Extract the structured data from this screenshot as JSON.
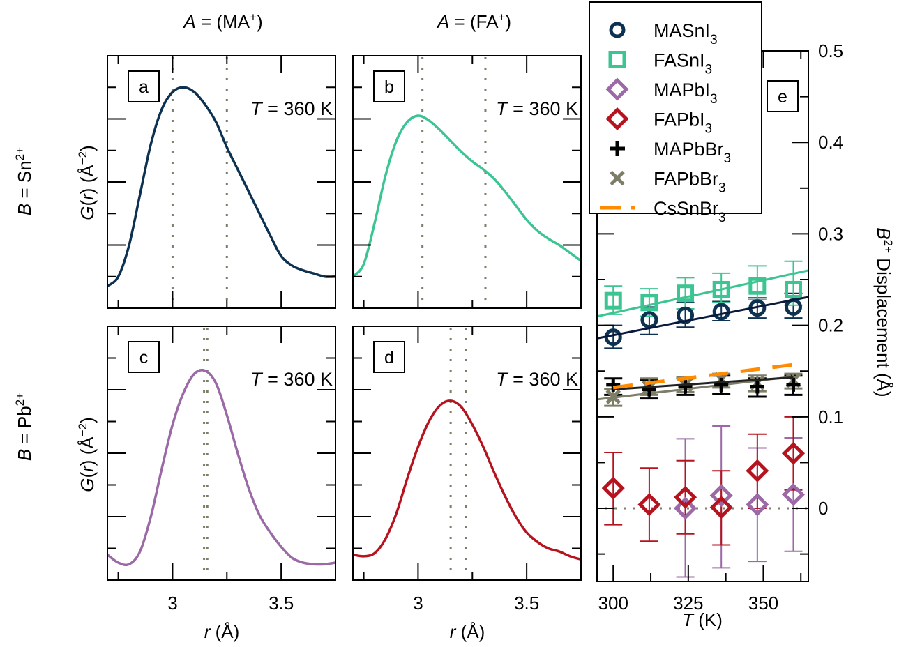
{
  "column_headers": [
    {
      "italic": "A",
      "rest": " = (MA",
      "sup": "+",
      "tail": ")"
    },
    {
      "italic": "A",
      "rest": " = (FA",
      "sup": "+",
      "tail": ")"
    }
  ],
  "row_headers": [
    {
      "italic": "B",
      "rest": " = Sn",
      "sup": "2+"
    },
    {
      "italic": "B",
      "rest": " = Pb",
      "sup": "2+"
    }
  ],
  "colors": {
    "MASnI3": "#0d3150",
    "FASnI3": "#3cc592",
    "MAPbI3": "#9b69a5",
    "FAPbI3": "#b5141f",
    "MAPbBr3": "#000000",
    "FAPbBr3": "#7d7d68",
    "CsSnBr3": "#ff8c00",
    "reference_dots": "#7d7d68"
  },
  "chart_data": [
    {
      "id": "a",
      "type": "line",
      "panel_label": "a",
      "annotation": {
        "italic": "T",
        "rest": " = 360 K"
      },
      "xlabel": {
        "italic": "r",
        "rest": " (Å)"
      },
      "ylabel": {
        "italic_g": "G",
        "paren_open": "(",
        "italic_r": "r",
        "paren_close": ")",
        "unit": " (Å",
        "sup": "−2",
        "tail": ")"
      },
      "xlim": [
        2.7,
        3.75
      ],
      "ylim": [
        0,
        8
      ],
      "xticks_major": [
        3.0,
        3.5
      ],
      "xticks_minor": [
        2.75,
        3.25
      ],
      "xtick_labels": [],
      "y_tick_labels_shown": false,
      "series_color_key": "MASnI3",
      "reference_lines": [
        3.0,
        3.25
      ],
      "x": [
        2.7,
        2.75,
        2.8,
        2.85,
        2.9,
        2.95,
        3.0,
        3.05,
        3.1,
        3.15,
        3.2,
        3.25,
        3.3,
        3.35,
        3.4,
        3.45,
        3.5,
        3.55,
        3.6,
        3.65,
        3.7,
        3.75
      ],
      "y": [
        0.7,
        1.0,
        2.0,
        3.6,
        5.2,
        6.3,
        6.85,
        7.0,
        6.85,
        6.45,
        5.9,
        5.1,
        4.4,
        3.7,
        3.0,
        2.3,
        1.65,
        1.35,
        1.2,
        1.1,
        1.0,
        1.0
      ]
    },
    {
      "id": "b",
      "type": "line",
      "panel_label": "b",
      "annotation": {
        "italic": "T",
        "rest": " = 360 K"
      },
      "xlabel": {
        "italic": "r",
        "rest": " (Å)"
      },
      "xlim": [
        2.7,
        3.75
      ],
      "ylim": [
        0,
        8
      ],
      "xticks_major": [
        3.0,
        3.5
      ],
      "xticks_minor": [
        2.75,
        3.25
      ],
      "xtick_labels": [],
      "series_color_key": "FASnI3",
      "reference_lines": [
        3.02,
        3.31
      ],
      "x": [
        2.7,
        2.75,
        2.8,
        2.85,
        2.9,
        2.95,
        3.0,
        3.05,
        3.1,
        3.15,
        3.2,
        3.25,
        3.3,
        3.35,
        3.4,
        3.45,
        3.5,
        3.55,
        3.6,
        3.65,
        3.7,
        3.75
      ],
      "y": [
        1.0,
        1.4,
        2.7,
        4.2,
        5.3,
        5.9,
        6.1,
        5.95,
        5.65,
        5.3,
        4.95,
        4.65,
        4.4,
        4.1,
        3.7,
        3.25,
        2.8,
        2.45,
        2.2,
        2.0,
        1.75,
        1.5
      ]
    },
    {
      "id": "c",
      "type": "line",
      "panel_label": "c",
      "annotation": {
        "italic": "T",
        "rest": " = 360 K"
      },
      "xlabel": {
        "italic": "r",
        "rest": " (Å)"
      },
      "ylabel": {
        "italic_g": "G",
        "paren_open": "(",
        "italic_r": "r",
        "paren_close": ")",
        "unit": " (Å",
        "sup": "−2",
        "tail": ")"
      },
      "xlim": [
        2.7,
        3.75
      ],
      "ylim": [
        0,
        8
      ],
      "xticks_major": [
        3.0,
        3.5
      ],
      "xticks_minor": [
        2.75,
        3.25
      ],
      "xtick_labels": [
        "3",
        "3.5"
      ],
      "series_color_key": "MAPbI3",
      "reference_lines": [
        3.145,
        3.16
      ],
      "x": [
        2.7,
        2.75,
        2.8,
        2.85,
        2.9,
        2.95,
        3.0,
        3.05,
        3.1,
        3.15,
        3.2,
        3.25,
        3.3,
        3.35,
        3.4,
        3.45,
        3.5,
        3.55,
        3.6,
        3.65,
        3.7,
        3.75
      ],
      "y": [
        0.8,
        0.55,
        0.5,
        0.9,
        2.0,
        3.5,
        4.9,
        5.9,
        6.5,
        6.6,
        6.2,
        5.2,
        4.0,
        2.9,
        2.05,
        1.5,
        1.05,
        0.7,
        0.55,
        0.5,
        0.5,
        0.55
      ]
    },
    {
      "id": "d",
      "type": "line",
      "panel_label": "d",
      "annotation": {
        "italic": "T",
        "rest": " = 360 K"
      },
      "xlabel": {
        "italic": "r",
        "rest": " (Å)"
      },
      "xlim": [
        2.7,
        3.75
      ],
      "ylim": [
        0,
        8
      ],
      "xticks_major": [
        3.0,
        3.5
      ],
      "xticks_minor": [
        2.75,
        3.25
      ],
      "xtick_labels": [
        "3",
        "3.5"
      ],
      "series_color_key": "FAPbI3",
      "reference_lines": [
        3.15,
        3.22
      ],
      "x": [
        2.7,
        2.75,
        2.8,
        2.85,
        2.9,
        2.95,
        3.0,
        3.05,
        3.1,
        3.15,
        3.2,
        3.25,
        3.3,
        3.35,
        3.4,
        3.45,
        3.5,
        3.55,
        3.6,
        3.65,
        3.7,
        3.75
      ],
      "y": [
        0.8,
        0.75,
        0.85,
        1.3,
        2.1,
        3.2,
        4.2,
        5.0,
        5.5,
        5.65,
        5.45,
        4.9,
        4.2,
        3.4,
        2.65,
        2.0,
        1.5,
        1.2,
        1.0,
        0.9,
        0.75,
        0.65
      ]
    },
    {
      "id": "e",
      "type": "scatter",
      "panel_label": "e",
      "xlabel": {
        "italic": "T",
        "rest": " (K)"
      },
      "ylabel": {
        "italic": "B",
        "sup": "2+",
        "rest": " Displacement (Å)"
      },
      "xlim": [
        294.6,
        365
      ],
      "ylim": [
        -0.08,
        0.5
      ],
      "xticks_major": [
        300,
        325,
        350
      ],
      "xticks_minor": [
        312.5,
        337.5,
        362.5
      ],
      "xtick_labels": [
        "300",
        "325",
        "350"
      ],
      "yticks_major": [
        0,
        0.1,
        0.2,
        0.3,
        0.4,
        0.5
      ],
      "yticks_minor": [
        -0.05,
        0.05,
        0.15,
        0.25,
        0.35,
        0.45
      ],
      "ytick_labels": [
        "0",
        "0.1",
        "0.2",
        "0.3",
        "0.4",
        "0.5"
      ],
      "ytick_side": "right",
      "zero_reference_line": 0,
      "legend_position": "top-left",
      "x": [
        300,
        312,
        324,
        336,
        348,
        360
      ],
      "series": [
        {
          "name": "MASnI3",
          "label_main": "MASnI",
          "label_sub": "3",
          "marker": "circle",
          "values": [
            0.187,
            0.206,
            0.211,
            0.215,
            0.219,
            0.22
          ],
          "err_low": [
            0.175,
            0.19,
            0.198,
            0.205,
            0.208,
            0.208
          ],
          "err_high": [
            0.2,
            0.22,
            0.225,
            0.226,
            0.23,
            0.235
          ],
          "fit": [
            [
              295,
              0.186
            ],
            [
              365,
              0.231
            ]
          ]
        },
        {
          "name": "FASnI3",
          "label_main": "FASnI",
          "label_sub": "3",
          "marker": "square",
          "values": [
            0.227,
            0.225,
            0.235,
            0.239,
            0.243,
            0.239
          ],
          "err_low": [
            0.212,
            0.21,
            0.218,
            0.225,
            0.228,
            0.222
          ],
          "err_high": [
            0.243,
            0.24,
            0.252,
            0.257,
            0.265,
            0.27
          ],
          "fit": [
            [
              295,
              0.21
            ],
            [
              365,
              0.26
            ]
          ]
        },
        {
          "name": "MAPbI3",
          "label_main": "MAPbI",
          "label_sub": "3",
          "marker": "diamond",
          "x": [
            324,
            336,
            348,
            360
          ],
          "values": [
            0.0,
            0.014,
            0.004,
            0.015
          ],
          "err_low": [
            -0.075,
            -0.065,
            -0.058,
            -0.047
          ],
          "err_high": [
            0.076,
            0.09,
            0.066,
            0.077
          ]
        },
        {
          "name": "FAPbI3",
          "label_main": "FAPbI",
          "label_sub": "3",
          "marker": "diamond",
          "values": [
            0.022,
            0.004,
            0.012,
            0.001,
            0.041,
            0.06
          ],
          "err_low": [
            -0.018,
            -0.036,
            -0.028,
            -0.04,
            0.0,
            0.02
          ],
          "err_high": [
            0.061,
            0.044,
            0.052,
            0.041,
            0.081,
            0.1
          ]
        },
        {
          "name": "MAPbBr3",
          "label_main": "MAPbBr",
          "label_sub": "3",
          "marker": "plus",
          "values": [
            0.135,
            0.13,
            0.133,
            0.135,
            0.133,
            0.135
          ],
          "err_low": [
            0.124,
            0.12,
            0.124,
            0.125,
            0.122,
            0.124
          ],
          "err_high": [
            0.142,
            0.14,
            0.142,
            0.145,
            0.142,
            0.145
          ],
          "fit": [
            [
              300,
              0.13
            ],
            [
              360,
              0.143
            ]
          ]
        },
        {
          "name": "FAPbBr3",
          "label_main": "FAPbBr",
          "label_sub": "3",
          "marker": "x",
          "values": [
            0.122,
            0.132,
            0.135,
            0.141,
            0.137,
            0.14
          ],
          "err_low": [
            0.112,
            0.124,
            0.127,
            0.132,
            0.128,
            0.131
          ],
          "err_high": [
            0.13,
            0.142,
            0.143,
            0.147,
            0.145,
            0.147
          ],
          "fit": [
            [
              294.6,
              0.119
            ],
            [
              360,
              0.144
            ]
          ]
        },
        {
          "name": "CsSnBr3",
          "label_main": "CsSnBr",
          "label_sub": "3",
          "marker": "dashed-line",
          "fit": [
            [
              300,
              0.132
            ],
            [
              360,
              0.157
            ]
          ]
        }
      ]
    }
  ]
}
